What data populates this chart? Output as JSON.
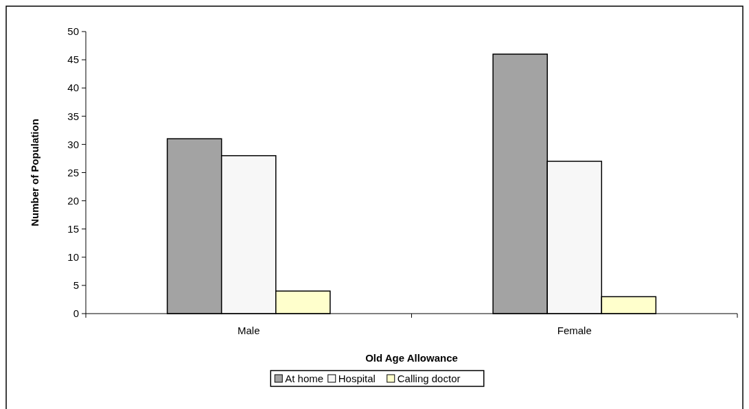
{
  "chart_data": {
    "type": "bar",
    "xlabel": "Old Age Allowance",
    "ylabel": "Number of Population",
    "categories": [
      "Male",
      "Female"
    ],
    "series": [
      {
        "name": "At home",
        "color": "#a3a3a3",
        "values": [
          31,
          46
        ]
      },
      {
        "name": "Hospital",
        "color": "#f7f7f7",
        "values": [
          28,
          27
        ]
      },
      {
        "name": "Calling doctor",
        "color": "#ffffcc",
        "values": [
          4,
          3
        ]
      }
    ],
    "ylim": [
      0,
      50
    ],
    "yticks": [
      0,
      5,
      10,
      15,
      20,
      25,
      30,
      35,
      40,
      45,
      50
    ],
    "grid": false,
    "legend": "bottom"
  }
}
